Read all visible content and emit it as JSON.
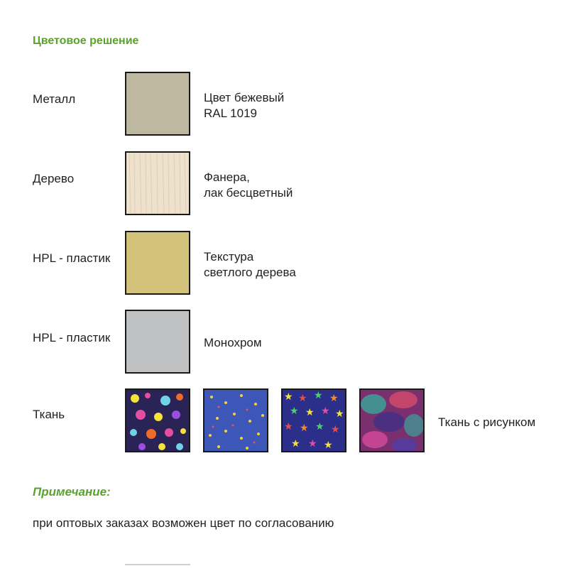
{
  "heading": "Цветовое решение",
  "rows": [
    {
      "label": "Металл",
      "desc": "Цвет бежевый\nRAL 1019",
      "color": "#bfb8a0"
    },
    {
      "label": "Дерево",
      "desc": "Фанера,\nлак бесцветный",
      "color": "#efe2cc"
    },
    {
      "label": "HPL - пластик",
      "desc": "Текстура\nсветлого дерева",
      "color": "#d2c27a"
    },
    {
      "label": "HPL - пластик",
      "desc": "Монохром",
      "color": "#c0c1c3"
    }
  ],
  "fabric": {
    "label": "Ткань",
    "desc": "Ткань с рисунком",
    "swatches": [
      {
        "name": "dark-floral-pattern",
        "base": "#2a2356"
      },
      {
        "name": "blue-small-print-pattern",
        "base": "#3d57b8"
      },
      {
        "name": "stars-pattern",
        "base": "#2b2f8a"
      },
      {
        "name": "pink-teal-abstract-pattern",
        "base": "#8a2f7a"
      }
    ]
  },
  "note": {
    "title": "Примечание:",
    "text": "при оптовых заказах возможен цвет по согласованию"
  },
  "colors": {
    "accent_green": "#5aa32b",
    "text": "#231f20",
    "border": "#1a1a1a"
  }
}
